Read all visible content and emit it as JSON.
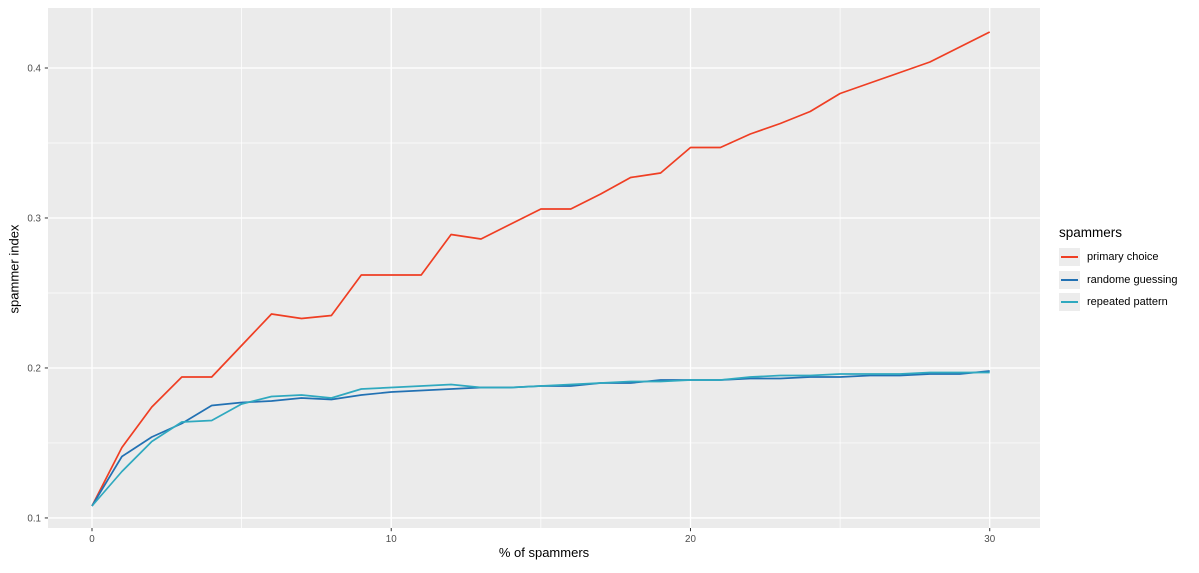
{
  "chart_data": {
    "type": "line",
    "xlabel": "% of spammers",
    "ylabel": "spammer index",
    "legend": {
      "title": "spammers",
      "position": "right"
    },
    "x": [
      0,
      1,
      2,
      3,
      4,
      5,
      6,
      7,
      8,
      9,
      10,
      11,
      12,
      13,
      14,
      15,
      16,
      17,
      18,
      19,
      20,
      21,
      22,
      23,
      24,
      25,
      26,
      27,
      28,
      29,
      30
    ],
    "series": [
      {
        "name": "primary choice",
        "color": "#EF3E23",
        "values": [
          0.108,
          0.147,
          0.174,
          0.194,
          0.194,
          0.215,
          0.236,
          0.233,
          0.235,
          0.262,
          0.262,
          0.262,
          0.289,
          0.286,
          0.296,
          0.306,
          0.306,
          0.316,
          0.327,
          0.33,
          0.347,
          0.347,
          0.356,
          0.363,
          0.371,
          0.383,
          0.39,
          0.397,
          0.404,
          0.414,
          0.424
        ]
      },
      {
        "name": "randome guessing",
        "color": "#2271B3",
        "values": [
          0.108,
          0.141,
          0.154,
          0.163,
          0.175,
          0.177,
          0.178,
          0.18,
          0.179,
          0.182,
          0.184,
          0.185,
          0.186,
          0.187,
          0.187,
          0.188,
          0.188,
          0.19,
          0.19,
          0.192,
          0.192,
          0.192,
          0.193,
          0.193,
          0.194,
          0.194,
          0.195,
          0.195,
          0.196,
          0.196,
          0.198
        ]
      },
      {
        "name": "repeated pattern",
        "color": "#2FA9BF",
        "values": [
          0.108,
          0.131,
          0.151,
          0.164,
          0.165,
          0.176,
          0.181,
          0.182,
          0.18,
          0.186,
          0.187,
          0.188,
          0.189,
          0.187,
          0.187,
          0.188,
          0.189,
          0.19,
          0.191,
          0.191,
          0.192,
          0.192,
          0.194,
          0.195,
          0.195,
          0.196,
          0.196,
          0.196,
          0.197,
          0.197,
          0.197
        ]
      }
    ],
    "axes": {
      "x": {
        "ticks": [
          0,
          10,
          20,
          30
        ],
        "tick_labels": [
          "0",
          "10",
          "20",
          "30"
        ],
        "minor": [
          5,
          15,
          25
        ],
        "range": [
          -1.47,
          31.68
        ]
      },
      "y": {
        "ticks": [
          0.1,
          0.2,
          0.3,
          0.4
        ],
        "tick_labels": [
          "0.1",
          "0.2",
          "0.3",
          "0.4"
        ],
        "minor": [
          0.15,
          0.25,
          0.35
        ],
        "range": [
          0.0933,
          0.44
        ]
      }
    },
    "grid": true,
    "style": {
      "panel_bg": "#EBEBEB",
      "grid_color": "#FFFFFF",
      "tick_color": "#333333",
      "tick_label_color": "#4D4D4D",
      "text_color": "#000000",
      "legend_key_bg": "#ECECEC",
      "line_width": 1.7
    }
  }
}
